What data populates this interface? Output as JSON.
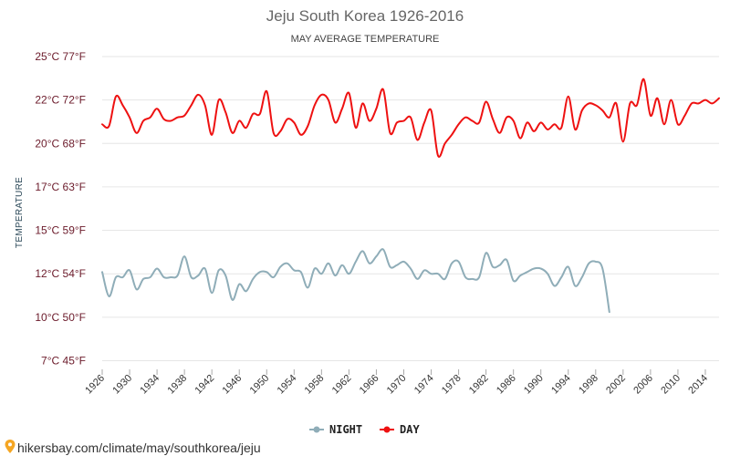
{
  "chart_data": {
    "type": "line",
    "title": "Jeju South Korea 1926-2016",
    "subtitle": "MAY AVERAGE TEMPERATURE",
    "ylabel": "TEMPERATURE",
    "xlabel": "",
    "y_unit": "°C",
    "ylim": [
      7,
      25
    ],
    "yticks": [
      {
        "value": 25,
        "label": "25°C 77°F"
      },
      {
        "value": 22.5,
        "label": "22°C 72°F"
      },
      {
        "value": 20,
        "label": "20°C 68°F"
      },
      {
        "value": 17.5,
        "label": "17°C 63°F"
      },
      {
        "value": 15,
        "label": "15°C 59°F"
      },
      {
        "value": 12.5,
        "label": "12°C 54°F"
      },
      {
        "value": 10,
        "label": "10°C 50°F"
      },
      {
        "value": 7.5,
        "label": "7°C 45°F"
      }
    ],
    "xlim": [
      1926,
      2016
    ],
    "xticks": [
      1926,
      1930,
      1934,
      1938,
      1942,
      1946,
      1950,
      1954,
      1958,
      1962,
      1966,
      1970,
      1974,
      1978,
      1982,
      1986,
      1990,
      1994,
      1998,
      2002,
      2006,
      2010,
      2014
    ],
    "grid": true,
    "legend_position": "bottom-center",
    "series": [
      {
        "name": "NIGHT",
        "color": "#8fadb8",
        "x": [
          1926,
          1927,
          1928,
          1929,
          1930,
          1931,
          1932,
          1933,
          1934,
          1935,
          1936,
          1937,
          1938,
          1939,
          1940,
          1941,
          1942,
          1943,
          1944,
          1945,
          1946,
          1947,
          1948,
          1949,
          1950,
          1951,
          1952,
          1953,
          1954,
          1955,
          1956,
          1957,
          1958,
          1959,
          1960,
          1961,
          1962,
          1963,
          1964,
          1965,
          1966,
          1967,
          1968,
          1969,
          1970,
          1971,
          1972,
          1973,
          1974,
          1975,
          1976,
          1977,
          1978,
          1979,
          1980,
          1981,
          1982,
          1983,
          1984,
          1985,
          1986,
          1987,
          1988,
          1989,
          1990,
          1991,
          1992,
          1993,
          1994,
          1995,
          1996,
          1997,
          1998,
          1999,
          2000
        ],
        "values": [
          12.6,
          11.2,
          12.3,
          12.3,
          12.7,
          11.6,
          12.2,
          12.3,
          12.8,
          12.3,
          12.3,
          12.4,
          13.5,
          12.3,
          12.4,
          12.8,
          11.4,
          12.7,
          12.4,
          11.0,
          11.9,
          11.5,
          12.2,
          12.6,
          12.6,
          12.3,
          12.9,
          13.1,
          12.7,
          12.6,
          11.7,
          12.8,
          12.5,
          13.1,
          12.4,
          13.0,
          12.5,
          13.2,
          13.8,
          13.1,
          13.5,
          13.9,
          12.9,
          13.0,
          13.2,
          12.8,
          12.2,
          12.7,
          12.5,
          12.5,
          12.2,
          13.1,
          13.2,
          12.3,
          12.2,
          12.3,
          13.7,
          12.9,
          13.0,
          13.3,
          12.1,
          12.4,
          12.6,
          12.8,
          12.8,
          12.5,
          11.8,
          12.3,
          12.9,
          11.8,
          12.3,
          13.1,
          13.2,
          12.8,
          10.3
        ]
      },
      {
        "name": "DAY",
        "color": "#ee1111",
        "x": [
          1926,
          1927,
          1928,
          1929,
          1930,
          1931,
          1932,
          1933,
          1934,
          1935,
          1936,
          1937,
          1938,
          1939,
          1940,
          1941,
          1942,
          1943,
          1944,
          1945,
          1946,
          1947,
          1948,
          1949,
          1950,
          1951,
          1952,
          1953,
          1954,
          1955,
          1956,
          1957,
          1958,
          1959,
          1960,
          1961,
          1962,
          1963,
          1964,
          1965,
          1966,
          1967,
          1968,
          1969,
          1970,
          1971,
          1972,
          1973,
          1974,
          1975,
          1976,
          1977,
          1978,
          1979,
          1980,
          1981,
          1982,
          1983,
          1984,
          1985,
          1986,
          1987,
          1988,
          1989,
          1990,
          1991,
          1992,
          1993,
          1994,
          1995,
          1996,
          1997,
          1998,
          1999,
          2000,
          2001,
          2002,
          2003,
          2004,
          2005,
          2006,
          2007,
          2008,
          2009,
          2010,
          2011,
          2012,
          2013,
          2014,
          2015,
          2016
        ],
        "values": [
          21.1,
          21.0,
          22.7,
          22.2,
          21.5,
          20.6,
          21.3,
          21.5,
          22.0,
          21.4,
          21.3,
          21.5,
          21.6,
          22.2,
          22.8,
          22.2,
          20.5,
          22.5,
          21.8,
          20.6,
          21.3,
          20.9,
          21.7,
          21.7,
          23.0,
          20.6,
          20.7,
          21.4,
          21.2,
          20.5,
          21.0,
          22.2,
          22.8,
          22.5,
          21.2,
          22.0,
          22.9,
          20.9,
          22.3,
          21.3,
          22.0,
          23.1,
          20.6,
          21.2,
          21.3,
          21.5,
          20.2,
          21.2,
          21.9,
          19.3,
          20.0,
          20.5,
          21.1,
          21.5,
          21.3,
          21.2,
          22.4,
          21.4,
          20.6,
          21.5,
          21.3,
          20.3,
          21.2,
          20.7,
          21.2,
          20.8,
          21.1,
          20.9,
          22.7,
          20.8,
          21.9,
          22.3,
          22.2,
          21.9,
          21.5,
          22.3,
          20.1,
          22.3,
          22.2,
          23.7,
          21.6,
          22.6,
          21.1,
          22.5,
          21.1,
          21.6,
          22.3,
          22.3,
          22.5,
          22.3,
          22.6
        ]
      }
    ]
  },
  "legend": [
    {
      "label": "NIGHT",
      "color": "#8fadb8"
    },
    {
      "label": "DAY",
      "color": "#ee1111"
    }
  ],
  "footer": {
    "pin_icon": "map-pin-icon",
    "url": "hikersbay.com/climate/may/southkorea/jeju",
    "pin_color": "#f5a623"
  }
}
